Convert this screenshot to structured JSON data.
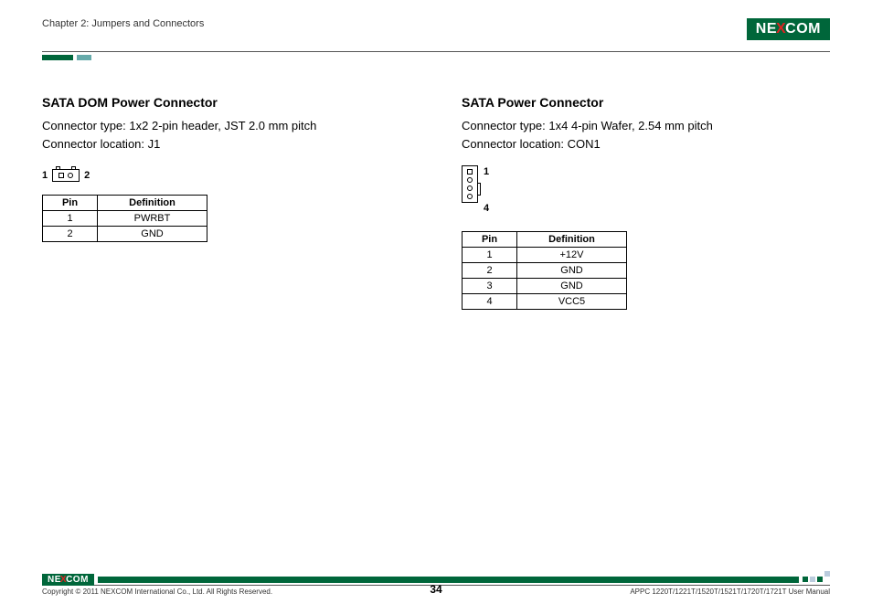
{
  "header": {
    "chapter": "Chapter 2: Jumpers and Connectors",
    "brand_left": "NE",
    "brand_x": "X",
    "brand_right": "COM"
  },
  "left": {
    "title": "SATA DOM Power Connector",
    "line1": "Connector type: 1x2 2-pin header, JST 2.0 mm pitch",
    "line2": "Connector location: J1",
    "pin_left": "1",
    "pin_right": "2",
    "table": {
      "h_pin": "Pin",
      "h_def": "Definition",
      "rows": [
        {
          "pin": "1",
          "def": "PWRBT"
        },
        {
          "pin": "2",
          "def": "GND"
        }
      ]
    }
  },
  "right": {
    "title": "SATA Power Connector",
    "line1": "Connector type: 1x4 4-pin Wafer, 2.54 mm pitch",
    "line2": "Connector location: CON1",
    "pin_top": "1",
    "pin_bot": "4",
    "table": {
      "h_pin": "Pin",
      "h_def": "Definition",
      "rows": [
        {
          "pin": "1",
          "def": "+12V"
        },
        {
          "pin": "2",
          "def": "GND"
        },
        {
          "pin": "3",
          "def": "GND"
        },
        {
          "pin": "4",
          "def": "VCC5"
        }
      ]
    }
  },
  "footer": {
    "copyright": "Copyright © 2011 NEXCOM International Co., Ltd. All Rights Reserved.",
    "page": "34",
    "doc": "APPC 1220T/1221T/1520T/1521T/1720T/1721T User Manual"
  },
  "colors": {
    "brand_green": "#00663a",
    "brand_red": "#d22",
    "rule_gray": "#555",
    "text": "#000"
  }
}
